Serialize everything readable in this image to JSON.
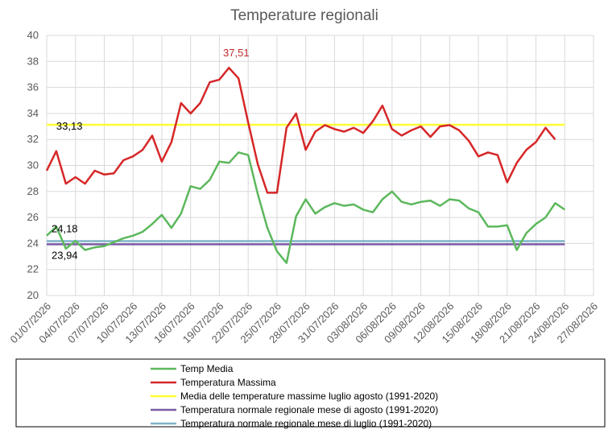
{
  "chart_data": {
    "type": "line",
    "title": "Temperature regionali",
    "ylim": [
      20,
      40
    ],
    "y_ticks": [
      "20",
      "22",
      "24",
      "26",
      "28",
      "30",
      "32",
      "34",
      "36",
      "38",
      "40"
    ],
    "x_start": "01/07/2026",
    "x_end": "27/08/2026",
    "x_ticks": [
      "01/07/2026",
      "04/07/2026",
      "07/07/2026",
      "10/07/2026",
      "13/07/2026",
      "16/07/2026",
      "19/07/2026",
      "22/07/2026",
      "25/07/2026",
      "28/07/2026",
      "31/07/2026",
      "03/08/2026",
      "06/08/2026",
      "09/08/2026",
      "12/08/2026",
      "15/08/2026",
      "18/08/2026",
      "21/08/2026",
      "24/08/2026",
      "27/08/2026"
    ],
    "grid": true,
    "legend_position": "bottom",
    "series": [
      {
        "name": "Temp Media",
        "color": "#5cb85c",
        "kind": "line",
        "values": [
          24.6,
          25.3,
          23.6,
          24.2,
          23.5,
          23.7,
          23.8,
          24.1,
          24.4,
          24.6,
          24.9,
          25.5,
          26.2,
          25.2,
          26.3,
          28.4,
          28.2,
          28.9,
          30.3,
          30.2,
          31.0,
          30.8,
          27.8,
          25.2,
          23.4,
          22.5,
          26.1,
          27.4,
          26.3,
          26.8,
          27.1,
          26.9,
          27.0,
          26.6,
          26.4,
          27.4,
          28.0,
          27.2,
          27.0,
          27.2,
          27.3,
          26.9,
          27.4,
          27.3,
          26.7,
          26.4,
          25.3,
          25.3,
          25.4,
          23.5,
          24.8,
          25.5,
          26.0,
          27.1,
          26.6
        ]
      },
      {
        "name": "Temperatura Massima",
        "color": "#d62728",
        "kind": "line",
        "values": [
          29.6,
          31.1,
          28.6,
          29.1,
          28.6,
          29.6,
          29.3,
          29.4,
          30.4,
          30.7,
          31.2,
          32.3,
          30.3,
          31.8,
          34.8,
          34.0,
          34.8,
          36.4,
          36.6,
          37.51,
          36.7,
          33.3,
          30.1,
          27.9,
          27.9,
          32.9,
          34.0,
          31.2,
          32.6,
          33.1,
          32.8,
          32.6,
          32.9,
          32.5,
          33.4,
          34.6,
          32.8,
          32.3,
          32.7,
          33.0,
          32.2,
          33.0,
          33.1,
          32.7,
          31.9,
          30.7,
          31.0,
          30.8,
          28.7,
          30.2,
          31.2,
          31.8,
          32.9,
          32.0
        ]
      },
      {
        "name": "Media delle temperature massime luglio agosto (1991-2020)",
        "color": "#ffff33",
        "kind": "reference",
        "value": 33.13
      },
      {
        "name": "Temperatura normale regionale mese di agosto (1991-2020)",
        "color": "#7b5aa6",
        "kind": "reference",
        "value": 23.94
      },
      {
        "name": "Temperatura normale regionale mese di luglio (1991-2020)",
        "color": "#7fb3c8",
        "kind": "reference",
        "value": 24.18
      }
    ],
    "annotations": [
      {
        "text": "37,51",
        "day": 19,
        "value": 37.51,
        "color": "#c0282d"
      },
      {
        "text": "33,13",
        "day": 1,
        "value": 33.13,
        "color": "#000000"
      },
      {
        "text": "24,18",
        "day": 0,
        "value": 24.18,
        "color": "#000000"
      },
      {
        "text": "23,94",
        "day": 0,
        "value": 23.94,
        "color": "#000000"
      }
    ]
  }
}
